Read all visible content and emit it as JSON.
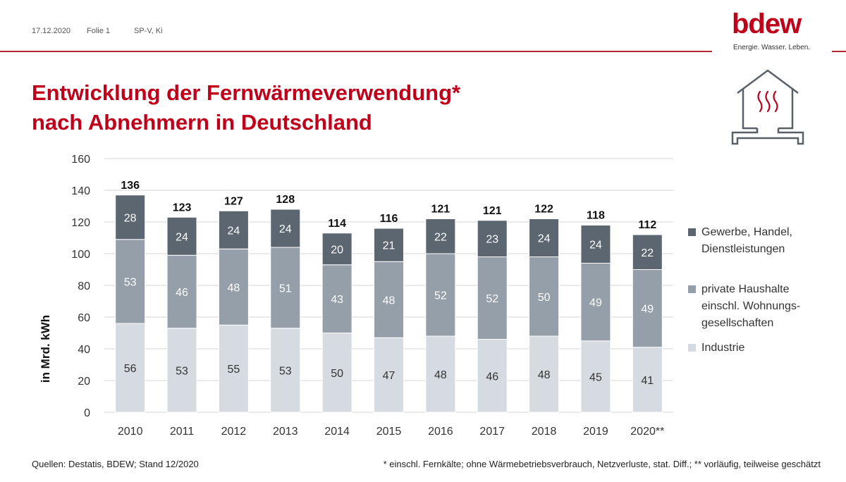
{
  "header": {
    "date": "17.12.2020",
    "folie": "Folie 1",
    "author": "SP-V, Ki",
    "logo_text": "bdew",
    "logo_tagline": "Energie. Wasser. Leben."
  },
  "title": {
    "line1": "Entwicklung der Fernwärmeverwendung*",
    "line2": "nach Abnehmern in Deutschland"
  },
  "footer": {
    "source": "Quellen: Destatis, BDEW; Stand 12/2020",
    "note": "* einschl. Fernkälte; ohne Wärmebetriebsverbrauch, Netzverluste, stat. Diff.; ** vorläufig, teilweise geschätzt"
  },
  "colors": {
    "accent": "#c0001a",
    "gewerbe": "#5b6671",
    "haushalte": "#949fa9",
    "industrie": "#d5dbe0"
  },
  "chart_data": {
    "type": "bar",
    "stacked": true,
    "ylabel": "in Mrd. kWh",
    "ylim": [
      0,
      160
    ],
    "yticks": [
      0,
      20,
      40,
      60,
      80,
      100,
      120,
      140,
      160
    ],
    "grid": true,
    "legend_position": "right",
    "categories": [
      "2010",
      "2011",
      "2012",
      "2013",
      "2014",
      "2015",
      "2016",
      "2017",
      "2018",
      "2019",
      "2020**"
    ],
    "totals": [
      136,
      123,
      127,
      128,
      114,
      116,
      121,
      121,
      122,
      118,
      112
    ],
    "series": [
      {
        "name": "Industrie",
        "color": "#d5dbe0",
        "values": [
          56,
          53,
          55,
          53,
          50,
          47,
          48,
          46,
          48,
          45,
          41
        ]
      },
      {
        "name": "private Haushalte einschl. Wohnungs-gesellschaften",
        "color": "#949fa9",
        "values": [
          53,
          46,
          48,
          51,
          43,
          48,
          52,
          52,
          50,
          49,
          49
        ]
      },
      {
        "name": "Gewerbe, Handel, Dienstleistungen",
        "color": "#5b6671",
        "values": [
          28,
          24,
          24,
          24,
          20,
          21,
          22,
          23,
          24,
          24,
          22
        ]
      }
    ],
    "legend": [
      {
        "lines": [
          "Gewerbe, Handel,",
          "Dienstleistungen"
        ],
        "color": "#5b6671"
      },
      {
        "lines": [
          "private Haushalte",
          "einschl. Wohnungs-",
          "gesellschaften"
        ],
        "color": "#949fa9"
      },
      {
        "lines": [
          "Industrie"
        ],
        "color": "#d5dbe0"
      }
    ]
  }
}
